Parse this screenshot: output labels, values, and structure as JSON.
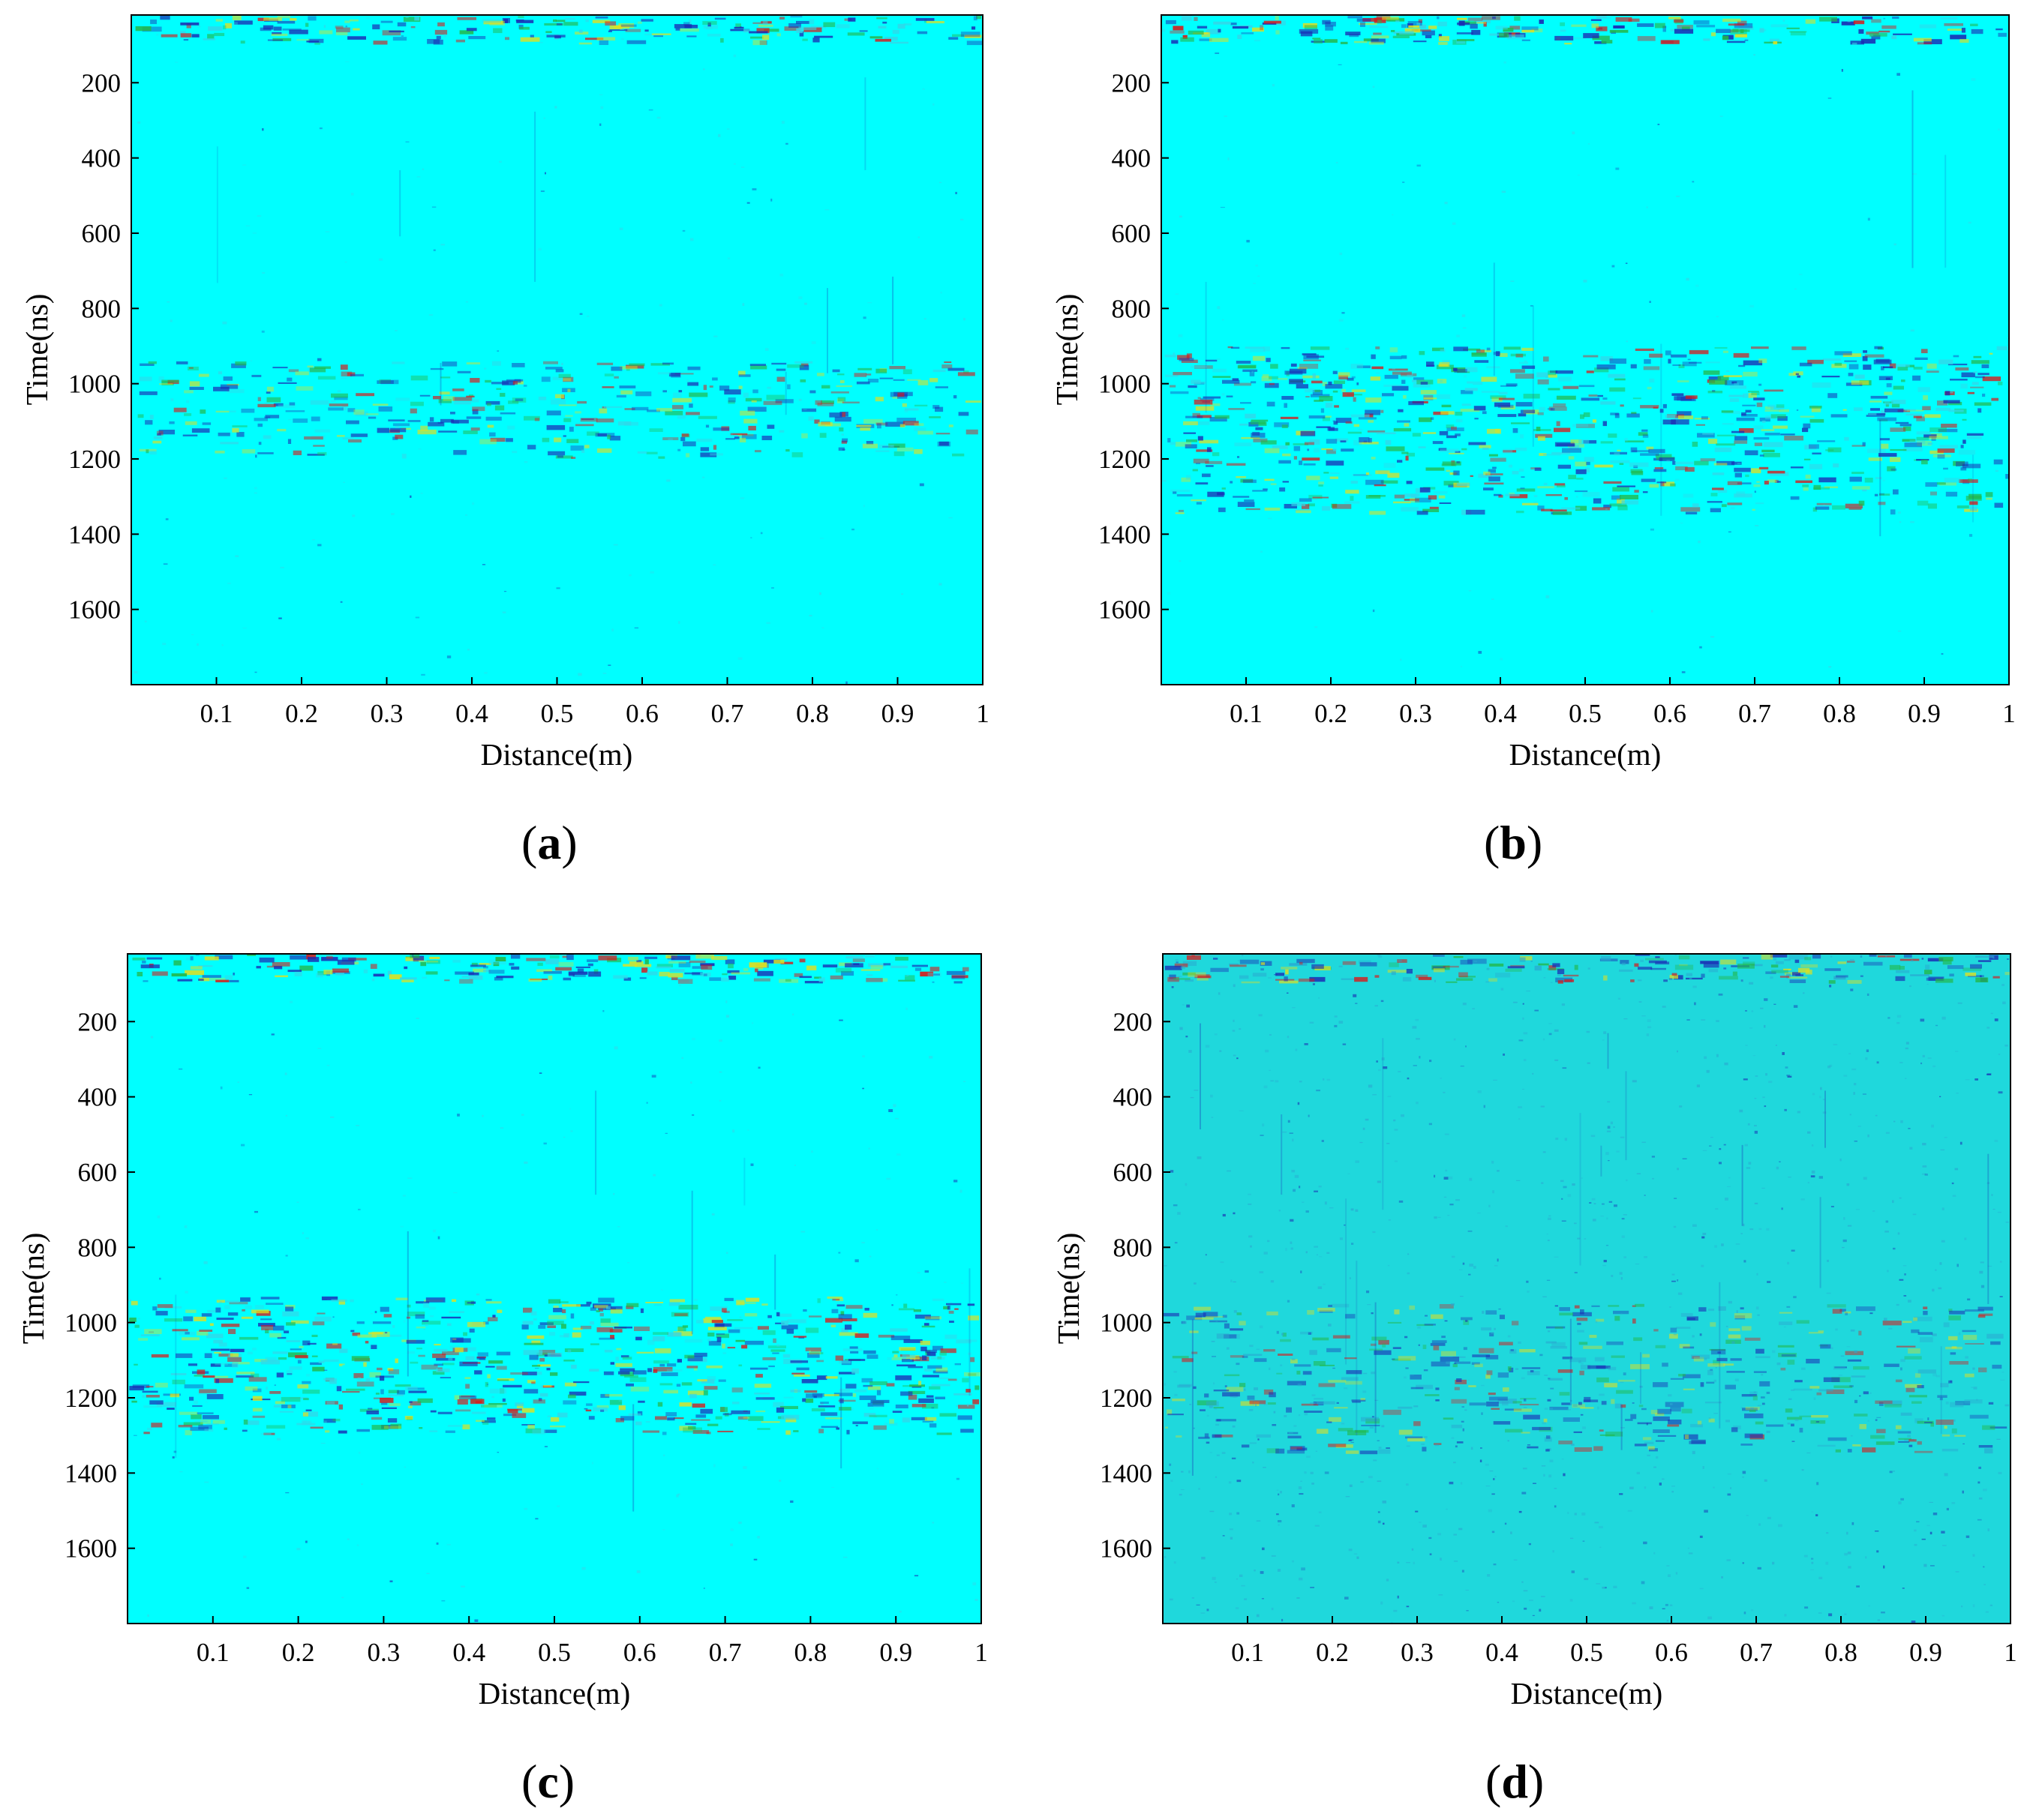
{
  "figure": {
    "panels": [
      {
        "id": "a",
        "label": "a"
      },
      {
        "id": "b",
        "label": "b"
      },
      {
        "id": "c",
        "label": "c"
      },
      {
        "id": "d",
        "label": "d"
      }
    ]
  },
  "chart_data": [
    {
      "type": "heatmap",
      "panel": "a",
      "title": "",
      "xlabel": "Distance(m)",
      "ylabel": "Time(ns)",
      "xlim": [
        0,
        1
      ],
      "ylim": [
        1800,
        20
      ],
      "xticks": [
        "0.1",
        "0.2",
        "0.3",
        "0.4",
        "0.5",
        "0.6",
        "0.7",
        "0.8",
        "0.9",
        "1"
      ],
      "yticks": [
        "200",
        "400",
        "600",
        "800",
        "1000",
        "1200",
        "1400",
        "1600"
      ],
      "colors": {
        "background": "#00ffff",
        "weak": "#33d6e8",
        "dark": "#1a2ab4",
        "mid": "#22b84a",
        "hot": "#d81a1a",
        "warm": "#e0e020"
      },
      "bands": [
        {
          "t0": 20,
          "t1": 100,
          "intensity": 0.85
        },
        {
          "t0": 940,
          "t1": 1200,
          "intensity": 0.6
        }
      ],
      "noise": 0.06
    },
    {
      "type": "heatmap",
      "panel": "b",
      "title": "",
      "xlabel": "Distance(m)",
      "ylabel": "Time(ns)",
      "xlim": [
        0,
        1
      ],
      "ylim": [
        1800,
        20
      ],
      "xticks": [
        "0.1",
        "0.2",
        "0.3",
        "0.4",
        "0.5",
        "0.6",
        "0.7",
        "0.8",
        "0.9",
        "1"
      ],
      "yticks": [
        "200",
        "400",
        "600",
        "800",
        "1000",
        "1200",
        "1400",
        "1600"
      ],
      "colors": {
        "background": "#00ffff",
        "weak": "#33d6e8",
        "dark": "#1a2ab4",
        "mid": "#22b84a",
        "hot": "#d81a1a",
        "warm": "#e0e020"
      },
      "bands": [
        {
          "t0": 20,
          "t1": 100,
          "intensity": 0.95
        },
        {
          "t0": 900,
          "t1": 1350,
          "intensity": 0.75
        }
      ],
      "noise": 0.05
    },
    {
      "type": "heatmap",
      "panel": "c",
      "title": "",
      "xlabel": "Distance(m)",
      "ylabel": "Time(ns)",
      "xlim": [
        0,
        1
      ],
      "ylim": [
        1800,
        20
      ],
      "xticks": [
        "0.1",
        "0.2",
        "0.3",
        "0.4",
        "0.5",
        "0.6",
        "0.7",
        "0.8",
        "0.9",
        "1"
      ],
      "yticks": [
        "200",
        "400",
        "600",
        "800",
        "1000",
        "1200",
        "1400",
        "1600"
      ],
      "colors": {
        "background": "#00ffff",
        "weak": "#33d6e8",
        "dark": "#1a2ab4",
        "mid": "#22b84a",
        "hot": "#d81a1a",
        "warm": "#e0e020"
      },
      "bands": [
        {
          "t0": 20,
          "t1": 100,
          "intensity": 0.95
        },
        {
          "t0": 930,
          "t1": 1300,
          "intensity": 0.8
        }
      ],
      "noise": 0.07
    },
    {
      "type": "heatmap",
      "panel": "d",
      "title": "",
      "xlabel": "Distance(m)",
      "ylabel": "Time(ns)",
      "xlim": [
        0,
        1
      ],
      "ylim": [
        1800,
        20
      ],
      "xticks": [
        "0.1",
        "0.2",
        "0.3",
        "0.4",
        "0.5",
        "0.6",
        "0.7",
        "0.8",
        "0.9",
        "1"
      ],
      "yticks": [
        "200",
        "400",
        "600",
        "800",
        "1000",
        "1200",
        "1400",
        "1600"
      ],
      "colors": {
        "background": "#1fd8dc",
        "weak": "#2aa8d0",
        "dark": "#1a2ab4",
        "mid": "#22b84a",
        "hot": "#d81a1a",
        "warm": "#e0e020"
      },
      "bands": [
        {
          "t0": 20,
          "t1": 100,
          "intensity": 0.8
        },
        {
          "t0": 950,
          "t1": 1350,
          "intensity": 0.45
        }
      ],
      "noise": 0.35
    }
  ]
}
